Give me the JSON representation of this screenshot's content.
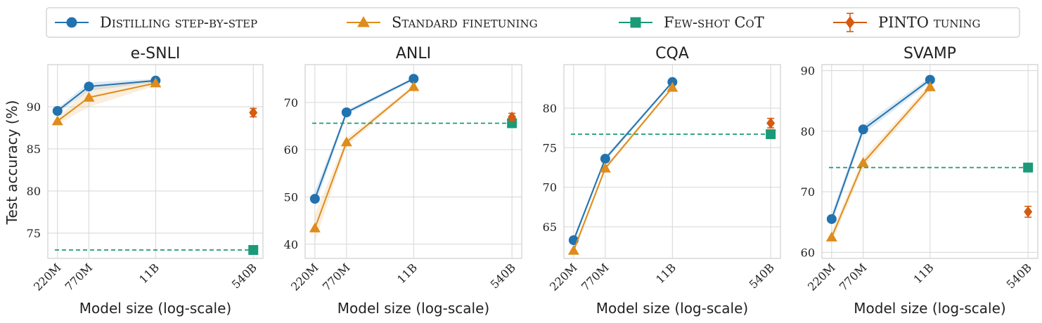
{
  "legend": {
    "entries": [
      {
        "key": "distilling",
        "label": "Distilling step-by-step",
        "color": "#2272b0",
        "marker": "circle"
      },
      {
        "key": "standard",
        "label": "Standard finetuning",
        "color": "#de8c1b",
        "marker": "triangle"
      },
      {
        "key": "fewshot",
        "label": "Few-shot CoT",
        "color": "#1a9a78",
        "marker": "square"
      },
      {
        "key": "pinto",
        "label": "PINTO tuning",
        "color": "#d65a10",
        "marker": "diamond-errorbar"
      }
    ]
  },
  "shared": {
    "xlabel": "Model size (log-scale)",
    "ylabel": "Test accuracy (%)",
    "x_tick_labels": [
      "220M",
      "770M",
      "11B",
      "540B"
    ],
    "x_params": [
      220000000,
      770000000,
      11000000000,
      540000000000
    ],
    "x_scale": "log",
    "grid": true,
    "legend_position": "top"
  },
  "chart_data": [
    {
      "type": "line",
      "title": "e-SNLI",
      "ylim": [
        72,
        95
      ],
      "yticks": [
        75,
        80,
        85,
        90
      ],
      "series": [
        {
          "name": "Distilling step-by-step",
          "key": "distilling",
          "x": [
            220000000,
            770000000,
            11000000000
          ],
          "values": [
            89.5,
            92.4,
            93.1
          ],
          "band": [
            [
              89.2,
              89.8
            ],
            [
              91.9,
              92.9
            ],
            [
              92.9,
              93.3
            ]
          ]
        },
        {
          "name": "Standard finetuning",
          "key": "standard",
          "x": [
            220000000,
            770000000,
            11000000000
          ],
          "values": [
            88.3,
            91.1,
            92.8
          ],
          "band": [
            [
              87.9,
              88.7
            ],
            [
              90.0,
              92.2
            ],
            [
              92.5,
              93.1
            ]
          ]
        },
        {
          "name": "Few-shot CoT",
          "key": "fewshot",
          "x": [
            540000000000
          ],
          "values": [
            73.0
          ],
          "reference_line": true
        },
        {
          "name": "PINTO tuning",
          "key": "pinto",
          "x": [
            540000000000
          ],
          "values": [
            89.3
          ],
          "error": [
            0.5
          ]
        }
      ]
    },
    {
      "type": "line",
      "title": "ANLI",
      "ylim": [
        37,
        78
      ],
      "yticks": [
        40,
        50,
        60,
        70
      ],
      "series": [
        {
          "name": "Distilling step-by-step",
          "key": "distilling",
          "x": [
            220000000,
            770000000,
            11000000000
          ],
          "values": [
            49.6,
            67.9,
            75.0
          ],
          "band": [
            [
              48.0,
              51.2
            ],
            [
              67.4,
              68.4
            ],
            [
              74.7,
              75.3
            ]
          ]
        },
        {
          "name": "Standard finetuning",
          "key": "standard",
          "x": [
            220000000,
            770000000,
            11000000000
          ],
          "values": [
            43.4,
            61.6,
            73.3
          ],
          "band": [
            [
              40.5,
              46.3
            ],
            [
              60.8,
              62.4
            ],
            [
              72.9,
              73.7
            ]
          ]
        },
        {
          "name": "Few-shot CoT",
          "key": "fewshot",
          "x": [
            540000000000
          ],
          "values": [
            65.6
          ],
          "reference_line": true
        },
        {
          "name": "PINTO tuning",
          "key": "pinto",
          "x": [
            540000000000
          ],
          "values": [
            66.9
          ],
          "error": [
            0.8
          ]
        }
      ]
    },
    {
      "type": "line",
      "title": "CQA",
      "ylim": [
        61,
        85.5
      ],
      "yticks": [
        65,
        70,
        75,
        80
      ],
      "series": [
        {
          "name": "Distilling step-by-step",
          "key": "distilling",
          "x": [
            220000000,
            770000000,
            11000000000
          ],
          "values": [
            63.3,
            73.6,
            83.3
          ],
          "band": [
            [
              62.9,
              63.7
            ],
            [
              73.3,
              73.9
            ],
            [
              83.1,
              83.5
            ]
          ]
        },
        {
          "name": "Standard finetuning",
          "key": "standard",
          "x": [
            220000000,
            770000000,
            11000000000
          ],
          "values": [
            62.0,
            72.4,
            82.6
          ],
          "band": [
            [
              61.6,
              62.4
            ],
            [
              72.1,
              72.7
            ],
            [
              82.4,
              82.8
            ]
          ]
        },
        {
          "name": "Few-shot CoT",
          "key": "fewshot",
          "x": [
            540000000000
          ],
          "values": [
            76.7
          ],
          "reference_line": true
        },
        {
          "name": "PINTO tuning",
          "key": "pinto",
          "x": [
            540000000000
          ],
          "values": [
            78.1
          ],
          "error": [
            0.6
          ]
        }
      ]
    },
    {
      "type": "line",
      "title": "SVAMP",
      "ylim": [
        59,
        91
      ],
      "yticks": [
        60,
        70,
        80,
        90
      ],
      "series": [
        {
          "name": "Distilling step-by-step",
          "key": "distilling",
          "x": [
            220000000,
            770000000,
            11000000000
          ],
          "values": [
            65.5,
            80.3,
            88.5
          ],
          "band": [
            [
              64.6,
              66.4
            ],
            [
              79.6,
              81.0
            ],
            [
              88.0,
              89.0
            ]
          ]
        },
        {
          "name": "Standard finetuning",
          "key": "standard",
          "x": [
            220000000,
            770000000,
            11000000000
          ],
          "values": [
            62.5,
            74.8,
            87.3
          ],
          "band": [
            [
              61.5,
              63.5
            ],
            [
              74.0,
              75.6
            ],
            [
              86.7,
              87.9
            ]
          ]
        },
        {
          "name": "Few-shot CoT",
          "key": "fewshot",
          "x": [
            540000000000
          ],
          "values": [
            74.0
          ],
          "reference_line": true
        },
        {
          "name": "PINTO tuning",
          "key": "pinto",
          "x": [
            540000000000
          ],
          "values": [
            66.7
          ],
          "error": [
            0.9
          ]
        }
      ]
    }
  ]
}
